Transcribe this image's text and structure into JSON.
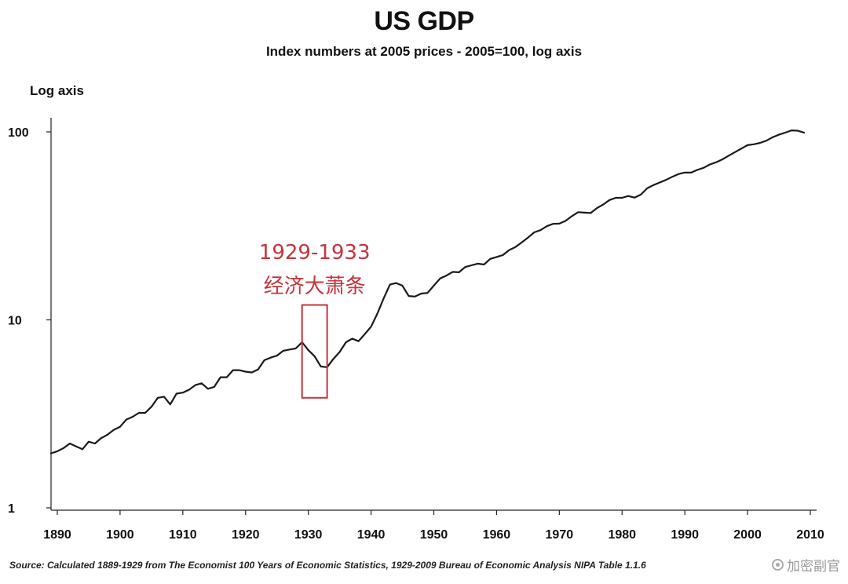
{
  "chart_data": {
    "type": "line",
    "title": "US GDP",
    "subtitle": "Index numbers at 2005 prices - 2005=100, log axis",
    "ylabel": "Log axis",
    "xlabel": "",
    "y_scale": "log",
    "ylim": [
      1,
      130
    ],
    "xlim": [
      1889,
      2011
    ],
    "y_ticks": [
      1,
      10,
      100
    ],
    "y_tick_labels": [
      "1",
      "10",
      "100"
    ],
    "x_ticks": [
      1890,
      1900,
      1910,
      1920,
      1930,
      1940,
      1950,
      1960,
      1970,
      1980,
      1990,
      2000,
      2010
    ],
    "x_tick_labels": [
      "1890",
      "1900",
      "1910",
      "1920",
      "1930",
      "1940",
      "1950",
      "1960",
      "1970",
      "1980",
      "1990",
      "2000",
      "2010"
    ],
    "grid": false,
    "legend": "none",
    "line_color": "#1a1a1a",
    "series": [
      {
        "x": [
          1889,
          1890,
          1891,
          1892,
          1893,
          1894,
          1895,
          1896,
          1897,
          1898,
          1899,
          1900,
          1901,
          1902,
          1903,
          1904,
          1905,
          1906,
          1907,
          1908,
          1909,
          1910,
          1911,
          1912,
          1913,
          1914,
          1915,
          1916,
          1917,
          1918,
          1919,
          1920,
          1921,
          1922,
          1923,
          1924,
          1925,
          1926,
          1927,
          1928,
          1929,
          1930,
          1931,
          1932,
          1933,
          1934,
          1935,
          1936,
          1937,
          1938,
          1939,
          1940,
          1941,
          1942,
          1943,
          1944,
          1945,
          1946,
          1947,
          1948,
          1949,
          1950,
          1951,
          1952,
          1953,
          1954,
          1955,
          1956,
          1957,
          1958,
          1959,
          1960,
          1961,
          1962,
          1963,
          1964,
          1965,
          1966,
          1967,
          1968,
          1969,
          1970,
          1971,
          1972,
          1973,
          1974,
          1975,
          1976,
          1977,
          1978,
          1979,
          1980,
          1981,
          1982,
          1983,
          1984,
          1985,
          1986,
          1987,
          1988,
          1989,
          1990,
          1991,
          1992,
          1993,
          1994,
          1995,
          1996,
          1997,
          1998,
          1999,
          2000,
          2001,
          2002,
          2003,
          2004,
          2005,
          2006,
          2007,
          2008,
          2009
        ],
        "values": [
          1.95,
          2.0,
          2.08,
          2.2,
          2.12,
          2.05,
          2.25,
          2.2,
          2.35,
          2.45,
          2.6,
          2.7,
          2.95,
          3.05,
          3.2,
          3.2,
          3.45,
          3.85,
          3.9,
          3.55,
          4.05,
          4.1,
          4.25,
          4.5,
          4.6,
          4.3,
          4.4,
          4.95,
          4.95,
          5.4,
          5.4,
          5.3,
          5.25,
          5.45,
          6.1,
          6.3,
          6.45,
          6.85,
          6.95,
          7.05,
          7.6,
          6.9,
          6.4,
          5.65,
          5.6,
          6.2,
          6.75,
          7.6,
          7.95,
          7.7,
          8.4,
          9.2,
          10.8,
          13.0,
          15.4,
          15.7,
          15.2,
          13.4,
          13.3,
          13.8,
          13.9,
          15.2,
          16.6,
          17.2,
          18.0,
          17.9,
          19.1,
          19.5,
          19.9,
          19.7,
          21.1,
          21.6,
          22.1,
          23.5,
          24.4,
          25.8,
          27.4,
          29.2,
          30.0,
          31.5,
          32.4,
          32.5,
          33.6,
          35.6,
          37.4,
          37.2,
          37.0,
          39.3,
          41.1,
          43.4,
          44.6,
          44.6,
          45.6,
          44.7,
          46.4,
          50.1,
          52.1,
          53.8,
          55.5,
          57.7,
          59.7,
          60.8,
          60.7,
          62.8,
          64.4,
          67.1,
          68.9,
          71.4,
          74.7,
          78.0,
          81.5,
          85.0,
          85.9,
          87.4,
          89.8,
          93.7,
          96.6,
          99.0,
          101.8,
          101.5,
          99.0
        ]
      }
    ],
    "annotations": [
      {
        "label_lines": [
          "1929-1933",
          "经济大萧条"
        ],
        "x_range": [
          1929,
          1933
        ],
        "y_range": [
          3.85,
          12.0
        ],
        "color": "#c8333c"
      }
    ]
  },
  "source_text": "Source: Calculated 1889-1929 from The Economist 100 Years of Economic Statistics, 1929-2009 Bureau of Economic Analysis NIPA Table 1.1.6",
  "watermark_text": "加密副官"
}
